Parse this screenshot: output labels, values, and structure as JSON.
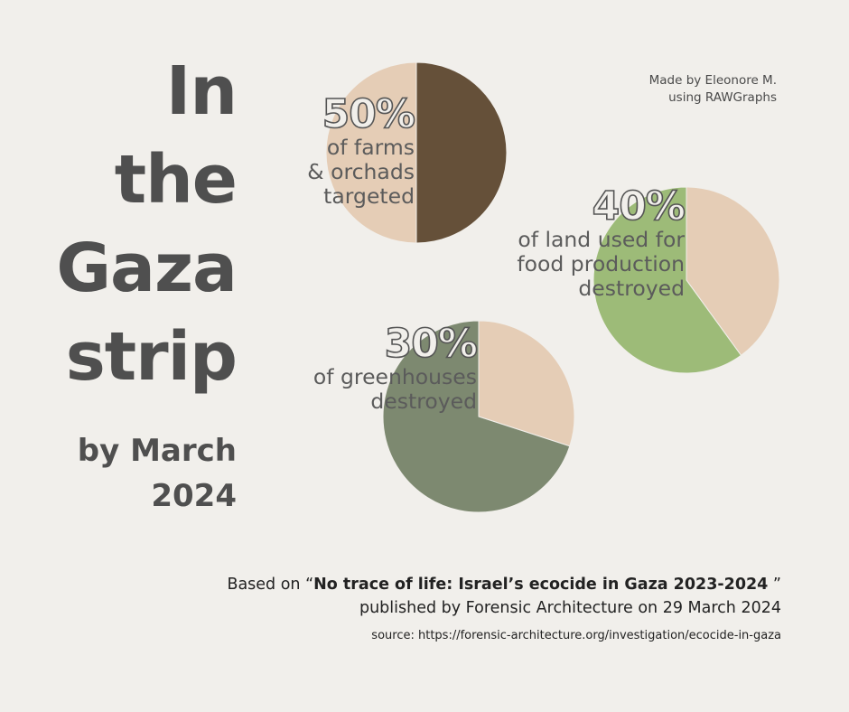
{
  "title": [
    "In",
    "the",
    "Gaza",
    "strip"
  ],
  "subtitle": [
    "by March",
    "2024"
  ],
  "credit": [
    "Made by Eleonore M.",
    "using RAWGraphs"
  ],
  "footer": {
    "prefix": "Based on “",
    "report_title": "No trace of life: Israel’s ecocide in Gaza 2023-2024",
    "suffix": " ”",
    "published": "published by Forensic Architecture on 29 March 2024",
    "source": "source: https://forensic-architecture.org/investigation/ecocide-in-gaza"
  },
  "chart_data": {
    "type": "pie",
    "charts": [
      {
        "value_label": "50%",
        "description": [
          "of farms",
          "& orchads",
          "targeted"
        ],
        "slices": [
          {
            "value": 50,
            "color": "#655039"
          },
          {
            "value": 50,
            "color": "#e5cdb6"
          }
        ]
      },
      {
        "value_label": "40%",
        "description": [
          "of land used for",
          "food production",
          "destroyed"
        ],
        "slices": [
          {
            "value": 40,
            "color": "#e5cdb6"
          },
          {
            "value": 60,
            "color": "#9dbb78"
          }
        ]
      },
      {
        "value_label": "30%",
        "description": [
          "of greenhouses",
          "destroyed"
        ],
        "slices": [
          {
            "value": 30,
            "color": "#e5cdb6"
          },
          {
            "value": 70,
            "color": "#7d8970"
          }
        ]
      }
    ]
  }
}
